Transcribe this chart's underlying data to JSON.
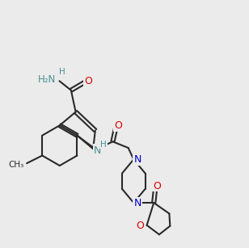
{
  "bg_color": "#ebebeb",
  "bond_color": "#2a2a2a",
  "atom_colors": {
    "N_teal": "#4a9090",
    "N_blue": "#0000cc",
    "O": "#dd0000",
    "S": "#aaaa00",
    "C": "#2a2a2a"
  }
}
